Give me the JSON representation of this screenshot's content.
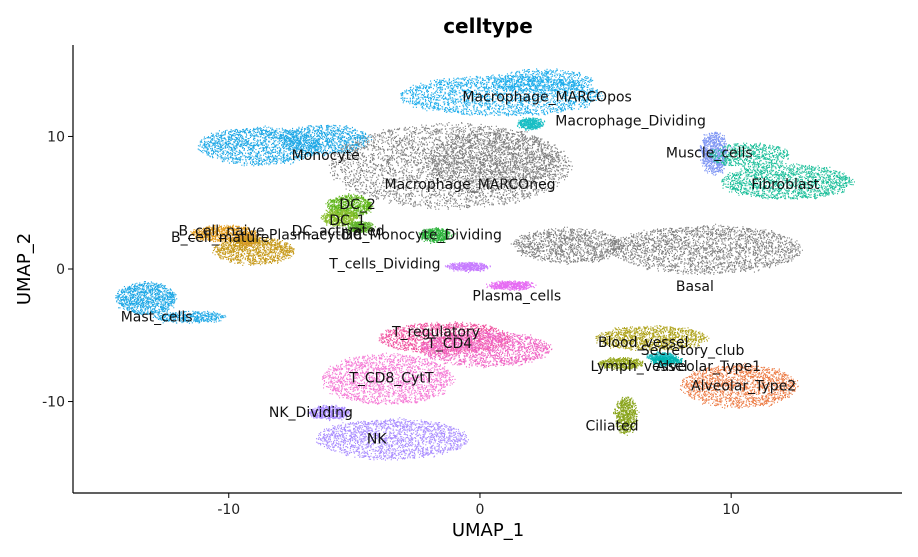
{
  "chart_data": {
    "type": "scatter",
    "title": "celltype",
    "xlabel": "UMAP_1",
    "ylabel": "UMAP_2",
    "xlim": [
      -16.2,
      16.8
    ],
    "ylim": [
      -16.9,
      16.9
    ],
    "xticks": [
      -10,
      0,
      10
    ],
    "yticks": [
      -10,
      0,
      10
    ],
    "xtick_labels": [
      "-10",
      "0",
      "10"
    ],
    "ytick_labels": [
      "-10",
      "0",
      "10"
    ],
    "grid": false,
    "legend": "none",
    "background_color": "#808080",
    "clusters": [
      {
        "label": "Macrophage_MARCOpos",
        "color": "#1FADEB",
        "label_pos": [
          -0.7,
          13.0
        ],
        "regions": [
          {
            "cx": 0.8,
            "cy": 13.1,
            "rx": 4.0,
            "ry": 1.5,
            "w": 1
          },
          {
            "cx": 2.5,
            "cy": 14.2,
            "rx": 2.0,
            "ry": 0.9,
            "w": 0.6
          }
        ]
      },
      {
        "label": "Macrophage_Dividing",
        "color": "#17BEC4",
        "label_pos": [
          3.0,
          11.2
        ],
        "regions": [
          {
            "cx": 2.0,
            "cy": 11.0,
            "rx": 0.5,
            "ry": 0.4,
            "w": 1
          }
        ]
      },
      {
        "label": "Monocyte",
        "color": "#1FA8E6",
        "label_pos": [
          -7.5,
          8.6
        ],
        "regions": [
          {
            "cx": -8.8,
            "cy": 9.3,
            "rx": 2.4,
            "ry": 1.4,
            "w": 1
          },
          {
            "cx": -6.2,
            "cy": 9.8,
            "rx": 1.8,
            "ry": 1.1,
            "w": 0.8
          }
        ]
      },
      {
        "label": "Macrophage_MARCOneg",
        "color": "#7F7F7F",
        "label_pos": [
          -3.8,
          6.4
        ],
        "regions": [
          {
            "cx": -1.2,
            "cy": 7.8,
            "rx": 4.8,
            "ry": 3.2,
            "w": 1
          },
          {
            "cx": 0.5,
            "cy": 8.2,
            "rx": 2.6,
            "ry": 2.2,
            "w": 0.7
          }
        ]
      },
      {
        "label": "DC_2",
        "color": "#5FB51A",
        "label_pos": [
          -5.6,
          4.9
        ],
        "regions": [
          {
            "cx": -5.2,
            "cy": 4.8,
            "rx": 0.9,
            "ry": 0.8,
            "w": 1
          }
        ]
      },
      {
        "label": "DC_1",
        "color": "#89BE2C",
        "label_pos": [
          -6.0,
          3.7
        ],
        "regions": [
          {
            "cx": -5.6,
            "cy": 3.9,
            "rx": 0.7,
            "ry": 0.6,
            "w": 1
          }
        ]
      },
      {
        "label": "DC_activated",
        "color": "#5EB329",
        "label_pos": [
          -7.5,
          2.9
        ],
        "regions": [
          {
            "cx": -4.8,
            "cy": 3.2,
            "rx": 0.5,
            "ry": 0.4,
            "w": 1
          }
        ]
      },
      {
        "label": "B_cell_naive",
        "color": "#E39C1C",
        "label_pos": [
          -12.0,
          2.9
        ],
        "regions": [
          {
            "cx": -10.2,
            "cy": 2.7,
            "rx": 1.3,
            "ry": 0.6,
            "w": 1
          }
        ]
      },
      {
        "label": "Plasmacytoid",
        "color": "#DD9B2B",
        "label_pos": [
          -8.4,
          2.6
        ],
        "regions": [
          {
            "cx": -9.3,
            "cy": 2.2,
            "rx": 0.5,
            "ry": 0.4,
            "w": 1
          }
        ]
      },
      {
        "label": "B_cell_mature",
        "color": "#C79A1B",
        "label_pos": [
          -12.3,
          2.4
        ],
        "regions": [
          {
            "cx": -9.0,
            "cy": 1.4,
            "rx": 1.6,
            "ry": 1.0,
            "w": 1
          }
        ]
      },
      {
        "label": "DC_Monocyte_Dividing",
        "color": "#2DB43C",
        "label_pos": [
          -5.5,
          2.6
        ],
        "regions": [
          {
            "cx": -1.8,
            "cy": 2.6,
            "rx": 0.6,
            "ry": 0.5,
            "w": 1
          }
        ]
      },
      {
        "label": "T_cells_Dividing",
        "color": "#C77CFF",
        "label_pos": [
          -6.0,
          0.4
        ],
        "regions": [
          {
            "cx": -0.5,
            "cy": 0.2,
            "rx": 0.8,
            "ry": 0.3,
            "w": 1
          }
        ]
      },
      {
        "label": "Mast_cells",
        "color": "#1FA8E6",
        "label_pos": [
          -14.3,
          -3.6
        ],
        "regions": [
          {
            "cx": -13.3,
            "cy": -2.2,
            "rx": 1.2,
            "ry": 1.2,
            "w": 1
          },
          {
            "cx": -11.6,
            "cy": -3.6,
            "rx": 1.4,
            "ry": 0.4,
            "w": 0.7
          }
        ]
      },
      {
        "label": "Plasma_cells",
        "color": "#E66BF3",
        "label_pos": [
          -0.3,
          -2.0
        ],
        "regions": [
          {
            "cx": 1.2,
            "cy": -1.2,
            "rx": 0.9,
            "ry": 0.3,
            "w": 1
          }
        ]
      },
      {
        "label": "T_regulatory",
        "color": "#F0509E",
        "label_pos": [
          -3.5,
          -4.7
        ],
        "regions": [
          {
            "cx": -1.4,
            "cy": -5.2,
            "rx": 2.6,
            "ry": 1.2,
            "w": 1
          }
        ]
      },
      {
        "label": "T_CD4",
        "color": "#F066C5",
        "label_pos": [
          -2.1,
          -5.6
        ],
        "regions": [
          {
            "cx": 0.2,
            "cy": -6.0,
            "rx": 2.6,
            "ry": 1.3,
            "w": 1
          }
        ]
      },
      {
        "label": "T_CD8_CytT",
        "color": "#F57BD6",
        "label_pos": [
          -5.2,
          -8.2
        ],
        "regions": [
          {
            "cx": -3.7,
            "cy": -8.3,
            "rx": 2.6,
            "ry": 1.9,
            "w": 1
          }
        ]
      },
      {
        "label": "NK_Dividing",
        "color": "#A98CFF",
        "label_pos": [
          -8.4,
          -10.8
        ],
        "regions": [
          {
            "cx": -6.0,
            "cy": -10.8,
            "rx": 0.8,
            "ry": 0.5,
            "w": 1
          }
        ]
      },
      {
        "label": "NK",
        "color": "#A98CFF",
        "label_pos": [
          -4.5,
          -12.8
        ],
        "regions": [
          {
            "cx": -3.5,
            "cy": -12.8,
            "rx": 3.0,
            "ry": 1.5,
            "w": 1
          }
        ]
      },
      {
        "label": "Muscle_cells",
        "color": "#7F96F4",
        "label_pos": [
          7.4,
          8.8
        ],
        "regions": [
          {
            "cx": 9.3,
            "cy": 8.8,
            "rx": 0.5,
            "ry": 1.6,
            "w": 1
          }
        ]
      },
      {
        "label": "Fibroblast",
        "color": "#1CBF9A",
        "label_pos": [
          10.8,
          6.4
        ],
        "regions": [
          {
            "cx": 12.2,
            "cy": 6.6,
            "rx": 2.6,
            "ry": 1.3,
            "w": 1
          },
          {
            "cx": 10.7,
            "cy": 8.6,
            "rx": 1.6,
            "ry": 0.9,
            "w": 0.6
          }
        ]
      },
      {
        "label": "Basal",
        "color": "#7F7F7F",
        "label_pos": [
          7.8,
          -1.3
        ],
        "regions": [
          {
            "cx": 9.0,
            "cy": 1.5,
            "rx": 3.8,
            "ry": 1.8,
            "w": 1
          },
          {
            "cx": 3.5,
            "cy": 1.8,
            "rx": 2.2,
            "ry": 1.3,
            "w": 0.8
          }
        ]
      },
      {
        "label": "Blood_vessel",
        "color": "#AFA31C",
        "label_pos": [
          4.7,
          -5.5
        ],
        "regions": [
          {
            "cx": 6.8,
            "cy": -5.2,
            "rx": 2.2,
            "ry": 0.9,
            "w": 1
          }
        ]
      },
      {
        "label": "Secretory_club",
        "color": "#1FBCC2",
        "label_pos": [
          6.4,
          -6.1
        ],
        "regions": [
          {
            "cx": 7.2,
            "cy": -6.6,
            "rx": 0.5,
            "ry": 0.3,
            "w": 1
          }
        ]
      },
      {
        "label": "Lymph_vessel",
        "color": "#95A61C",
        "label_pos": [
          4.4,
          -7.3
        ],
        "regions": [
          {
            "cx": 5.6,
            "cy": -7.1,
            "rx": 0.9,
            "ry": 0.4,
            "w": 1
          }
        ]
      },
      {
        "label": "Alveolar_Type1",
        "color": "#00B3B0",
        "label_pos": [
          7.0,
          -7.3
        ],
        "regions": [
          {
            "cx": 7.4,
            "cy": -6.9,
            "rx": 0.6,
            "ry": 0.3,
            "w": 1
          }
        ]
      },
      {
        "label": "Alveolar_Type2",
        "color": "#ED7E48",
        "label_pos": [
          8.4,
          -8.8
        ],
        "regions": [
          {
            "cx": 10.3,
            "cy": -8.8,
            "rx": 2.3,
            "ry": 1.6,
            "w": 1
          }
        ]
      },
      {
        "label": "Ciliated",
        "color": "#8AA51D",
        "label_pos": [
          4.2,
          -11.8
        ],
        "regions": [
          {
            "cx": 5.8,
            "cy": -11.0,
            "rx": 0.4,
            "ry": 1.4,
            "w": 1
          }
        ]
      }
    ]
  }
}
